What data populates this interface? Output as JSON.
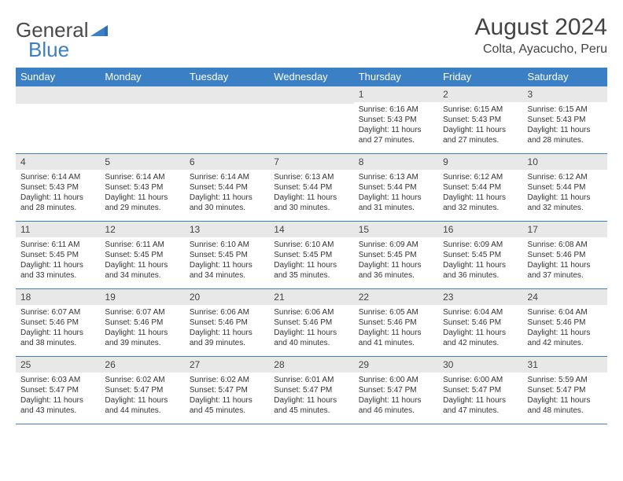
{
  "brand": {
    "part1": "General",
    "part2": "Blue"
  },
  "title": "August 2024",
  "subtitle": "Colta, Ayacucho, Peru",
  "colors": {
    "header_bg": "#3b7fc4",
    "header_text": "#ffffff",
    "daynum_bg": "#e8e8e8",
    "border": "#3b7fc4",
    "text": "#333333",
    "background": "#ffffff"
  },
  "typography": {
    "title_fontsize": 30,
    "subtitle_fontsize": 16,
    "header_fontsize": 13,
    "daynum_fontsize": 12,
    "body_fontsize": 10
  },
  "weekdays": [
    "Sunday",
    "Monday",
    "Tuesday",
    "Wednesday",
    "Thursday",
    "Friday",
    "Saturday"
  ],
  "weeks": [
    [
      {
        "day": "",
        "lines": []
      },
      {
        "day": "",
        "lines": []
      },
      {
        "day": "",
        "lines": []
      },
      {
        "day": "",
        "lines": []
      },
      {
        "day": "1",
        "lines": [
          "Sunrise: 6:16 AM",
          "Sunset: 5:43 PM",
          "Daylight: 11 hours and 27 minutes."
        ]
      },
      {
        "day": "2",
        "lines": [
          "Sunrise: 6:15 AM",
          "Sunset: 5:43 PM",
          "Daylight: 11 hours and 27 minutes."
        ]
      },
      {
        "day": "3",
        "lines": [
          "Sunrise: 6:15 AM",
          "Sunset: 5:43 PM",
          "Daylight: 11 hours and 28 minutes."
        ]
      }
    ],
    [
      {
        "day": "4",
        "lines": [
          "Sunrise: 6:14 AM",
          "Sunset: 5:43 PM",
          "Daylight: 11 hours and 28 minutes."
        ]
      },
      {
        "day": "5",
        "lines": [
          "Sunrise: 6:14 AM",
          "Sunset: 5:43 PM",
          "Daylight: 11 hours and 29 minutes."
        ]
      },
      {
        "day": "6",
        "lines": [
          "Sunrise: 6:14 AM",
          "Sunset: 5:44 PM",
          "Daylight: 11 hours and 30 minutes."
        ]
      },
      {
        "day": "7",
        "lines": [
          "Sunrise: 6:13 AM",
          "Sunset: 5:44 PM",
          "Daylight: 11 hours and 30 minutes."
        ]
      },
      {
        "day": "8",
        "lines": [
          "Sunrise: 6:13 AM",
          "Sunset: 5:44 PM",
          "Daylight: 11 hours and 31 minutes."
        ]
      },
      {
        "day": "9",
        "lines": [
          "Sunrise: 6:12 AM",
          "Sunset: 5:44 PM",
          "Daylight: 11 hours and 32 minutes."
        ]
      },
      {
        "day": "10",
        "lines": [
          "Sunrise: 6:12 AM",
          "Sunset: 5:44 PM",
          "Daylight: 11 hours and 32 minutes."
        ]
      }
    ],
    [
      {
        "day": "11",
        "lines": [
          "Sunrise: 6:11 AM",
          "Sunset: 5:45 PM",
          "Daylight: 11 hours and 33 minutes."
        ]
      },
      {
        "day": "12",
        "lines": [
          "Sunrise: 6:11 AM",
          "Sunset: 5:45 PM",
          "Daylight: 11 hours and 34 minutes."
        ]
      },
      {
        "day": "13",
        "lines": [
          "Sunrise: 6:10 AM",
          "Sunset: 5:45 PM",
          "Daylight: 11 hours and 34 minutes."
        ]
      },
      {
        "day": "14",
        "lines": [
          "Sunrise: 6:10 AM",
          "Sunset: 5:45 PM",
          "Daylight: 11 hours and 35 minutes."
        ]
      },
      {
        "day": "15",
        "lines": [
          "Sunrise: 6:09 AM",
          "Sunset: 5:45 PM",
          "Daylight: 11 hours and 36 minutes."
        ]
      },
      {
        "day": "16",
        "lines": [
          "Sunrise: 6:09 AM",
          "Sunset: 5:45 PM",
          "Daylight: 11 hours and 36 minutes."
        ]
      },
      {
        "day": "17",
        "lines": [
          "Sunrise: 6:08 AM",
          "Sunset: 5:46 PM",
          "Daylight: 11 hours and 37 minutes."
        ]
      }
    ],
    [
      {
        "day": "18",
        "lines": [
          "Sunrise: 6:07 AM",
          "Sunset: 5:46 PM",
          "Daylight: 11 hours and 38 minutes."
        ]
      },
      {
        "day": "19",
        "lines": [
          "Sunrise: 6:07 AM",
          "Sunset: 5:46 PM",
          "Daylight: 11 hours and 39 minutes."
        ]
      },
      {
        "day": "20",
        "lines": [
          "Sunrise: 6:06 AM",
          "Sunset: 5:46 PM",
          "Daylight: 11 hours and 39 minutes."
        ]
      },
      {
        "day": "21",
        "lines": [
          "Sunrise: 6:06 AM",
          "Sunset: 5:46 PM",
          "Daylight: 11 hours and 40 minutes."
        ]
      },
      {
        "day": "22",
        "lines": [
          "Sunrise: 6:05 AM",
          "Sunset: 5:46 PM",
          "Daylight: 11 hours and 41 minutes."
        ]
      },
      {
        "day": "23",
        "lines": [
          "Sunrise: 6:04 AM",
          "Sunset: 5:46 PM",
          "Daylight: 11 hours and 42 minutes."
        ]
      },
      {
        "day": "24",
        "lines": [
          "Sunrise: 6:04 AM",
          "Sunset: 5:46 PM",
          "Daylight: 11 hours and 42 minutes."
        ]
      }
    ],
    [
      {
        "day": "25",
        "lines": [
          "Sunrise: 6:03 AM",
          "Sunset: 5:47 PM",
          "Daylight: 11 hours and 43 minutes."
        ]
      },
      {
        "day": "26",
        "lines": [
          "Sunrise: 6:02 AM",
          "Sunset: 5:47 PM",
          "Daylight: 11 hours and 44 minutes."
        ]
      },
      {
        "day": "27",
        "lines": [
          "Sunrise: 6:02 AM",
          "Sunset: 5:47 PM",
          "Daylight: 11 hours and 45 minutes."
        ]
      },
      {
        "day": "28",
        "lines": [
          "Sunrise: 6:01 AM",
          "Sunset: 5:47 PM",
          "Daylight: 11 hours and 45 minutes."
        ]
      },
      {
        "day": "29",
        "lines": [
          "Sunrise: 6:00 AM",
          "Sunset: 5:47 PM",
          "Daylight: 11 hours and 46 minutes."
        ]
      },
      {
        "day": "30",
        "lines": [
          "Sunrise: 6:00 AM",
          "Sunset: 5:47 PM",
          "Daylight: 11 hours and 47 minutes."
        ]
      },
      {
        "day": "31",
        "lines": [
          "Sunrise: 5:59 AM",
          "Sunset: 5:47 PM",
          "Daylight: 11 hours and 48 minutes."
        ]
      }
    ]
  ]
}
